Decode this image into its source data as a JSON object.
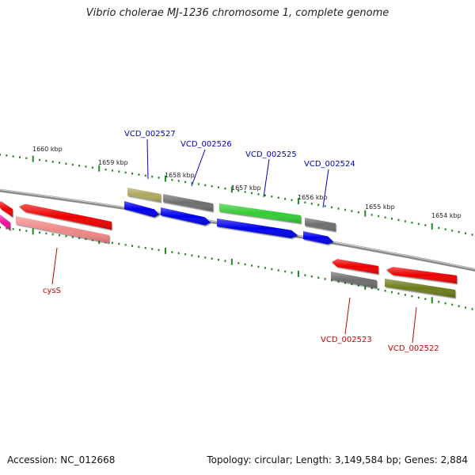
{
  "title": "Vibrio cholerae MJ-1236 chromosome 1, complete genome",
  "footer": {
    "accession": "Accession: NC_012668",
    "summary": "Topology: circular; Length: 3,149,584 bp; Genes: 2,884"
  },
  "ruler": {
    "tick_labels": [
      "1660 kbp",
      "1659 kbp",
      "1658 kbp",
      "1657 kbp",
      "1656 kbp",
      "1655 kbp",
      "1654 kbp"
    ]
  },
  "features": [
    {
      "id": "f1",
      "color": "#ee0000",
      "strand": "minus",
      "label": ""
    },
    {
      "id": "f2",
      "color": "#ee1199",
      "strand": "minus",
      "label": ""
    },
    {
      "id": "f3",
      "color": "#ee0000",
      "strand": "minus",
      "label": ""
    },
    {
      "id": "f4",
      "color": "#f08888",
      "strand": "minus",
      "label": "cysS"
    },
    {
      "id": "f5",
      "color": "#b0a860",
      "strand": "plus",
      "label": "VCD_002527"
    },
    {
      "id": "f6",
      "color": "#0000ee",
      "strand": "plus",
      "label": ""
    },
    {
      "id": "f7",
      "color": "#6e6e6e",
      "strand": "plus",
      "label": "VCD_002526"
    },
    {
      "id": "f8",
      "color": "#0000ee",
      "strand": "plus",
      "label": ""
    },
    {
      "id": "f9",
      "color": "#33cc33",
      "strand": "plus",
      "label": "VCD_002525"
    },
    {
      "id": "f10",
      "color": "#0000ee",
      "strand": "plus",
      "label": ""
    },
    {
      "id": "f11",
      "color": "#6e6e6e",
      "strand": "plus",
      "label": "VCD_002524"
    },
    {
      "id": "f12",
      "color": "#0000ee",
      "strand": "plus",
      "label": ""
    },
    {
      "id": "f13",
      "color": "#ee0000",
      "strand": "minus",
      "label": ""
    },
    {
      "id": "f14",
      "color": "#6e6e6e",
      "strand": "minus",
      "label": "VCD_002523"
    },
    {
      "id": "f15",
      "color": "#ee0000",
      "strand": "minus",
      "label": ""
    },
    {
      "id": "f16",
      "color": "#6b7d1a",
      "strand": "minus",
      "label": "VCD_002522"
    }
  ],
  "colors": {
    "backbone": "#8a8a8a",
    "tick": "#228822",
    "plus_label": "#0000cc",
    "minus_label": "#cc0000"
  }
}
